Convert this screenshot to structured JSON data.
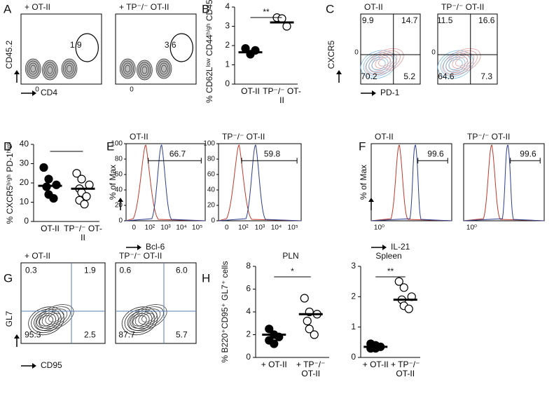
{
  "chart_data": [
    {
      "type": "strip",
      "panel": "B",
      "categories": [
        "OT-II",
        "TP⁻/⁻ OT-II"
      ],
      "values": [
        [
          1.85,
          1.55,
          1.75
        ],
        [
          3.45,
          3.4,
          3.0
        ]
      ],
      "means": [
        1.65,
        3.2
      ],
      "markers": [
        "filled",
        "open"
      ],
      "y_label": "% CD62Lˡᵒʷ CD44ʰⁱᵍʰ CD45.2⁺",
      "ylim": [
        0,
        4
      ],
      "yticks": [
        0,
        1,
        2,
        3,
        4
      ],
      "significance": "**"
    },
    {
      "type": "strip",
      "panel": "D",
      "categories": [
        "OT-II",
        "TP⁻/⁻ OT-II"
      ],
      "values": [
        [
          28,
          22,
          19,
          18,
          14,
          12
        ],
        [
          25,
          22,
          19,
          17,
          15,
          13,
          11,
          9
        ]
      ],
      "means": [
        18.5,
        17
      ],
      "markers": [
        "filled",
        "open"
      ],
      "y_label": "% CXCR5ʰⁱᵍʰ PD-1ʰⁱᵍʰ",
      "ylim": [
        0,
        40
      ],
      "yticks": [
        0,
        10,
        20,
        30,
        40
      ]
    },
    {
      "type": "strip",
      "panel": "H",
      "title": "PLN",
      "categories": [
        "+ OT-II",
        "+ TP⁻/⁻ OT-II"
      ],
      "values": [
        [
          2.5,
          2.0,
          1.8,
          1.5,
          1.2
        ],
        [
          5.2,
          4.0,
          3.8,
          3.2,
          2.5,
          2.0
        ]
      ],
      "means": [
        2.0,
        3.8
      ],
      "markers": [
        "filled",
        "open"
      ],
      "y_label": "% B220⁺CD95⁺ GL7⁺ cells",
      "ylim": [
        0,
        8
      ],
      "yticks": [
        0,
        2,
        4,
        6,
        8
      ],
      "significance": "*"
    },
    {
      "type": "strip",
      "title": "Spleen",
      "categories": [
        "+ OT-II",
        "+ TP⁻/⁻ OT-II"
      ],
      "values": [
        [
          0.45,
          0.4,
          0.35,
          0.3,
          0.3
        ],
        [
          2.5,
          2.3,
          2.0,
          1.9,
          1.7,
          1.6
        ]
      ],
      "means": [
        0.35,
        1.9
      ],
      "markers": [
        "filled",
        "open"
      ],
      "ylim": [
        0,
        3
      ],
      "yticks": [
        0,
        1,
        2,
        3
      ],
      "significance": "**"
    }
  ],
  "panels": [
    {
      "label": "A",
      "kind": "dot",
      "y_label": "CD45.2",
      "x_label": "CD4",
      "plots": [
        {
          "title": "+ OT-II",
          "numbers": [
            "1.9"
          ],
          "zero": "0"
        },
        {
          "title": "+ TP⁻/⁻ OT-II",
          "numbers": [
            "3.6"
          ],
          "zero": "0"
        }
      ]
    },
    {
      "label": "C",
      "kind": "quad",
      "y_label": "CXCR5",
      "x_label": "PD-1",
      "plots": [
        {
          "title": "OT-II",
          "numbers": [
            "9.9",
            "14.7",
            "70.2",
            "5.2"
          ],
          "zero": "0"
        },
        {
          "title": "TP⁻/⁻ OT-II",
          "numbers": [
            "11.5",
            "16.6",
            "64.6",
            "7.3"
          ],
          "zero": "0"
        }
      ]
    },
    {
      "label": "E",
      "kind": "hist",
      "y_label": "% of Max",
      "x_label": "Bcl-6",
      "yticks": [
        0,
        20,
        40,
        60,
        80,
        100
      ],
      "plots": [
        {
          "title": "OT-II",
          "numbers": [
            "66.7"
          ],
          "xticks": [
            "0",
            "10²",
            "10³",
            "10⁴",
            "10⁵"
          ]
        },
        {
          "title": "TP⁻/⁻ OT-II",
          "numbers": [
            "59.8"
          ],
          "xticks": [
            "0",
            "10²",
            "10³",
            "10⁴",
            "10⁵"
          ]
        }
      ]
    },
    {
      "label": "F",
      "kind": "hist",
      "y_label": "% of Max",
      "x_label": "IL-21",
      "plots": [
        {
          "title": "OT-II",
          "numbers": [
            "99.6"
          ],
          "xticks": [
            "10⁰"
          ]
        },
        {
          "title": "TP⁻/⁻ OT-II",
          "numbers": [
            "99.6"
          ],
          "xticks": [
            "10⁰"
          ]
        }
      ]
    },
    {
      "label": "G",
      "kind": "quad",
      "y_label": "GL7",
      "x_label": "CD95",
      "plots": [
        {
          "title": "+ OT-II",
          "numbers": [
            "0.3",
            "1.9",
            "95.3",
            "2.5"
          ]
        },
        {
          "title": "TP⁻/⁻ OT-II",
          "numbers": [
            "0.6",
            "6.0",
            "87.7",
            "5.7"
          ]
        }
      ]
    }
  ]
}
